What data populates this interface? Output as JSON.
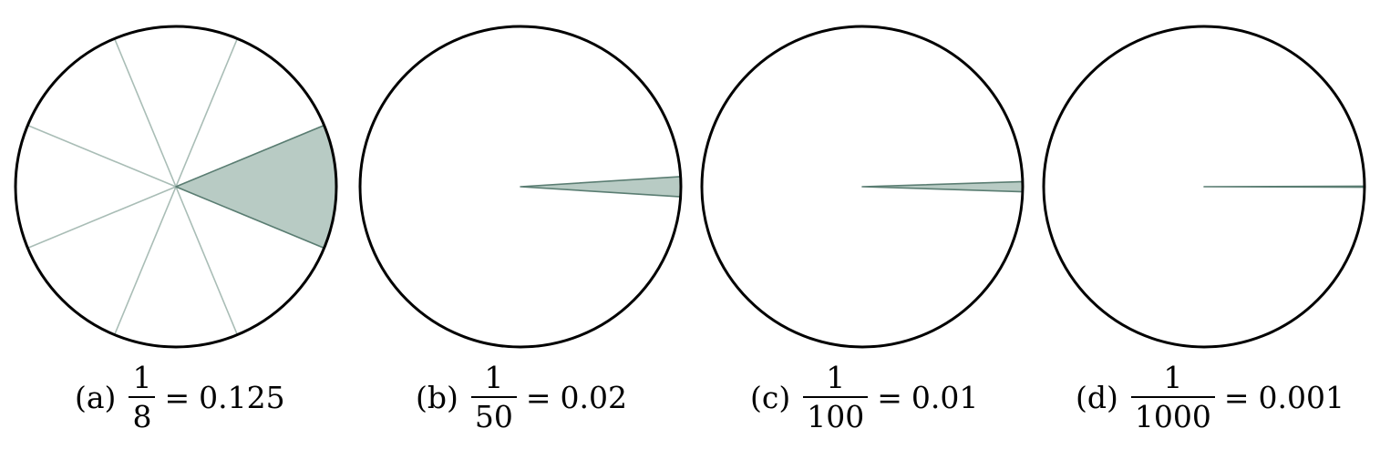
{
  "panels": [
    {
      "label": "(a)",
      "numerator": "1",
      "denominator": "8",
      "value_text": "0.125",
      "fraction": 0.125,
      "divisions": 8
    },
    {
      "label": "(b)",
      "numerator": "1",
      "denominator": "50",
      "value_text": "0.02",
      "fraction": 0.02,
      "divisions": 1
    },
    {
      "label": "(c)",
      "numerator": "1",
      "denominator": "100",
      "value_text": "0.01",
      "fraction": 0.01,
      "divisions": 1
    },
    {
      "label": "(d)",
      "numerator": "1",
      "denominator": "1000",
      "value_text": "0.001",
      "fraction": 0.001,
      "divisions": 1
    }
  ],
  "equals_sign": "=",
  "colors": {
    "wedge_fill": "#b8cbc4",
    "wedge_stroke": "#5a7d72",
    "division_line": "#a9bdb6",
    "circle_stroke": "#000000"
  }
}
